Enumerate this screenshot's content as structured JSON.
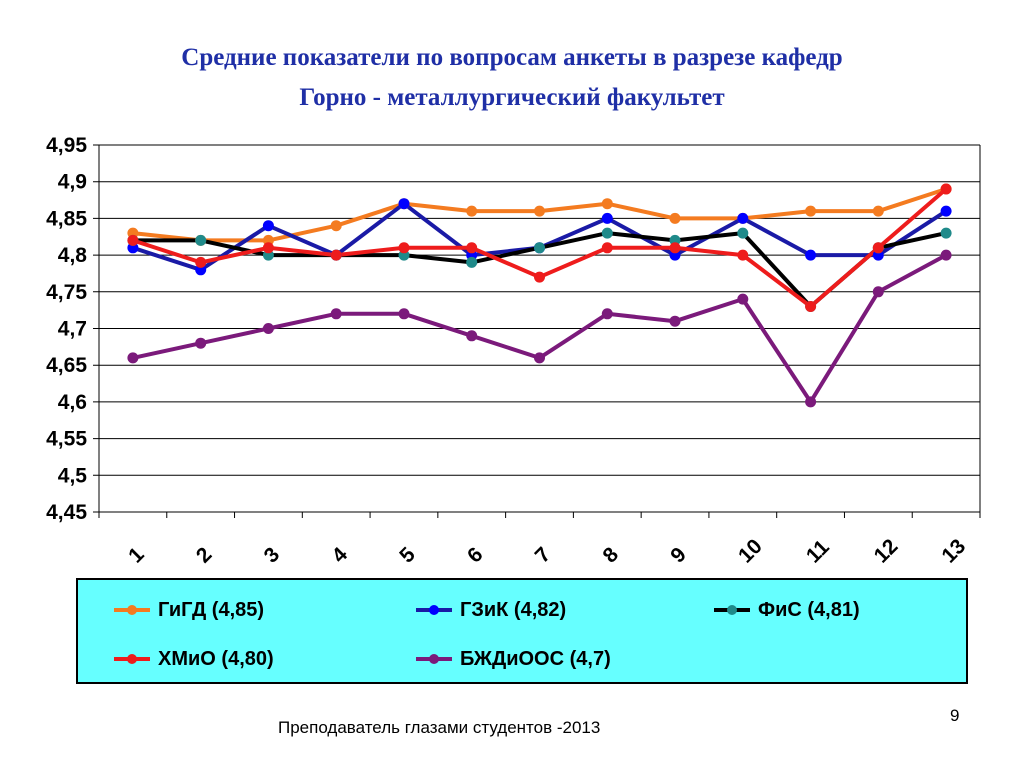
{
  "title": "Средние показатели по вопросам  анкеты  в разрезе кафедр",
  "subtitle": "Горно - металлургический факультет",
  "footer": "Преподаватель глазами студентов -2013",
  "page_number": "9",
  "chart_data": {
    "type": "line",
    "categories": [
      "1",
      "2",
      "3",
      "4",
      "5",
      "6",
      "7",
      "8",
      "9",
      "10",
      "11",
      "12",
      "13"
    ],
    "ylim": [
      4.45,
      4.95
    ],
    "yticks": [
      "4,45",
      "4,5",
      "4,55",
      "4,6",
      "4,65",
      "4,7",
      "4,75",
      "4,8",
      "4,85",
      "4,9",
      "4,95"
    ],
    "ytick_values": [
      4.45,
      4.5,
      4.55,
      4.6,
      4.65,
      4.7,
      4.75,
      4.8,
      4.85,
      4.9,
      4.95
    ],
    "grid": true,
    "legend_position": "bottom",
    "series": [
      {
        "name": "ГиГД (4,85)",
        "color": "#f47b20",
        "marker": "#f47b20",
        "values": [
          4.83,
          4.82,
          4.82,
          4.84,
          4.87,
          4.86,
          4.86,
          4.87,
          4.85,
          4.85,
          4.86,
          4.86,
          4.89
        ]
      },
      {
        "name": "ГЗиК (4,82)",
        "color": "#1a1aa6",
        "marker": "#0000ff",
        "values": [
          4.81,
          4.78,
          4.84,
          4.8,
          4.87,
          4.8,
          4.81,
          4.85,
          4.8,
          4.85,
          4.8,
          4.8,
          4.86
        ]
      },
      {
        "name": "ФиС (4,81)",
        "color": "#000000",
        "marker": "#1f8a8a",
        "values": [
          4.82,
          4.82,
          4.8,
          4.8,
          4.8,
          4.79,
          4.81,
          4.83,
          4.82,
          4.83,
          4.73,
          4.81,
          4.83
        ]
      },
      {
        "name": "ХМиО (4,80)",
        "color": "#ee1c1c",
        "marker": "#ee1c1c",
        "values": [
          4.82,
          4.79,
          4.81,
          4.8,
          4.81,
          4.81,
          4.77,
          4.81,
          4.81,
          4.8,
          4.73,
          4.81,
          4.89
        ]
      },
      {
        "name": "БЖДиООС (4,7)",
        "color": "#7b1a7b",
        "marker": "#7b1a7b",
        "values": [
          4.66,
          4.68,
          4.7,
          4.72,
          4.72,
          4.69,
          4.66,
          4.72,
          4.71,
          4.74,
          4.6,
          4.75,
          4.8
        ]
      }
    ]
  }
}
